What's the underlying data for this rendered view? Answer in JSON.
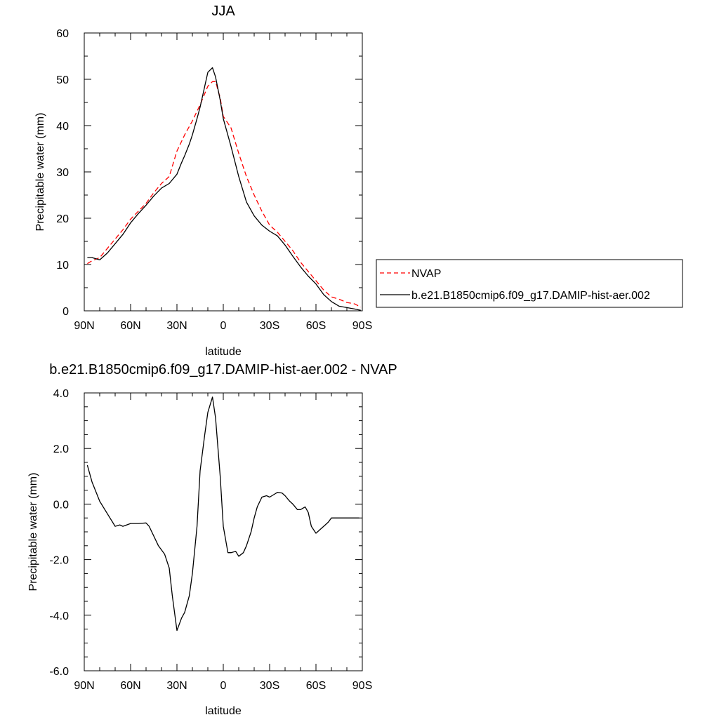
{
  "chart_data": [
    {
      "type": "line",
      "title": "JJA",
      "xlabel": "latitude",
      "ylabel": "Precipitable water (mm)",
      "xlim": [
        90,
        -90
      ],
      "ylim": [
        0,
        60
      ],
      "x_ticks": [
        90,
        60,
        30,
        0,
        -30,
        -60,
        -90
      ],
      "x_tick_labels": [
        "90N",
        "60N",
        "30N",
        "0",
        "30S",
        "60S",
        "90S"
      ],
      "y_ticks": [
        0,
        10,
        20,
        30,
        40,
        50,
        60
      ],
      "y_tick_labels": [
        "0",
        "10",
        "20",
        "30",
        "40",
        "50",
        "60"
      ],
      "grid": false,
      "legend_position": "right",
      "series": [
        {
          "name": "NVAP",
          "color": "#ff0000",
          "style": "dashed",
          "x": [
            88,
            85,
            80,
            75,
            70,
            65,
            60,
            55,
            50,
            45,
            40,
            35,
            30,
            25,
            20,
            15,
            10,
            7,
            5,
            2,
            0,
            -5,
            -10,
            -15,
            -20,
            -25,
            -30,
            -35,
            -40,
            -45,
            -50,
            -55,
            -60,
            -65,
            -70,
            -75,
            -80,
            -85,
            -89
          ],
          "y": [
            10.2,
            10.8,
            11.5,
            13.5,
            15.5,
            17.5,
            19.8,
            21.5,
            23.2,
            25.5,
            27.5,
            29.0,
            34.5,
            38.0,
            41.0,
            44.5,
            48.5,
            49.5,
            49.5,
            46.0,
            42.0,
            39.5,
            34.0,
            29.0,
            25.0,
            21.5,
            18.5,
            17.0,
            15.0,
            13.0,
            10.5,
            8.5,
            6.5,
            4.5,
            3.0,
            2.5,
            1.8,
            1.5,
            0.8
          ]
        },
        {
          "name": "b.e21.B1850cmip6.f09_g17.DAMIP-hist-aer.002",
          "color": "#000000",
          "style": "solid",
          "x": [
            88,
            85,
            80,
            75,
            70,
            65,
            60,
            55,
            50,
            45,
            40,
            35,
            30,
            27,
            25,
            22,
            20,
            17,
            15,
            12,
            10,
            7,
            5,
            2,
            0,
            -5,
            -10,
            -15,
            -20,
            -25,
            -30,
            -35,
            -40,
            -45,
            -50,
            -55,
            -60,
            -65,
            -70,
            -75,
            -80,
            -85,
            -89
          ],
          "y": [
            11.5,
            11.5,
            11.0,
            12.5,
            14.5,
            16.5,
            19.0,
            21.0,
            22.8,
            24.8,
            26.5,
            27.5,
            29.5,
            32.0,
            33.5,
            36.0,
            38.0,
            41.5,
            44.0,
            48.5,
            51.5,
            52.5,
            50.5,
            45.5,
            41.5,
            35.5,
            29.0,
            23.5,
            20.5,
            18.5,
            17.2,
            16.2,
            14.2,
            11.8,
            9.5,
            7.5,
            5.8,
            3.5,
            2.0,
            1.0,
            0.7,
            0.4,
            0.1
          ]
        }
      ]
    },
    {
      "type": "line",
      "title": "b.e21.B1850cmip6.f09_g17.DAMIP-hist-aer.002 - NVAP",
      "xlabel": "latitude",
      "ylabel": "Precipitable water (mm)",
      "xlim": [
        90,
        -90
      ],
      "ylim": [
        -6,
        4
      ],
      "x_ticks": [
        90,
        60,
        30,
        0,
        -30,
        -60,
        -90
      ],
      "x_tick_labels": [
        "90N",
        "60N",
        "30N",
        "0",
        "30S",
        "60S",
        "90S"
      ],
      "y_ticks": [
        -6,
        -4,
        -2,
        0,
        2,
        4
      ],
      "y_tick_labels": [
        "-6.0",
        "-4.0",
        "-2.0",
        "0.0",
        "2.0",
        "4.0"
      ],
      "grid": false,
      "series": [
        {
          "color": "#000000",
          "style": "solid",
          "x": [
            88,
            85,
            80,
            75,
            70,
            67,
            65,
            60,
            55,
            50,
            48,
            42,
            38,
            35,
            33,
            30,
            27,
            25,
            22,
            20,
            17,
            15,
            12,
            10,
            7,
            5,
            2,
            0,
            -3,
            -5,
            -8,
            -10,
            -13,
            -15,
            -18,
            -20,
            -22,
            -25,
            -28,
            -30,
            -33,
            -35,
            -38,
            -40,
            -43,
            -45,
            -48,
            -50,
            -53,
            -55,
            -57,
            -60,
            -62,
            -65,
            -68,
            -70,
            -73,
            -75,
            -78,
            -80,
            -85,
            -88
          ],
          "y": [
            1.4,
            0.8,
            0.1,
            -0.35,
            -0.8,
            -0.75,
            -0.8,
            -0.7,
            -0.7,
            -0.68,
            -0.8,
            -1.5,
            -1.8,
            -2.3,
            -3.3,
            -4.55,
            -4.1,
            -3.9,
            -3.3,
            -2.5,
            -0.8,
            1.2,
            2.5,
            3.3,
            3.85,
            3.1,
            1.0,
            -0.8,
            -1.75,
            -1.75,
            -1.7,
            -1.88,
            -1.75,
            -1.5,
            -1.0,
            -0.5,
            -0.1,
            0.25,
            0.3,
            0.25,
            0.35,
            0.42,
            0.4,
            0.3,
            0.1,
            0.0,
            -0.2,
            -0.2,
            -0.1,
            -0.3,
            -0.8,
            -1.05,
            -0.95,
            -0.8,
            -0.65,
            -0.5,
            -0.5,
            -0.5,
            -0.5,
            -0.5,
            -0.5,
            -0.5
          ]
        }
      ]
    }
  ]
}
